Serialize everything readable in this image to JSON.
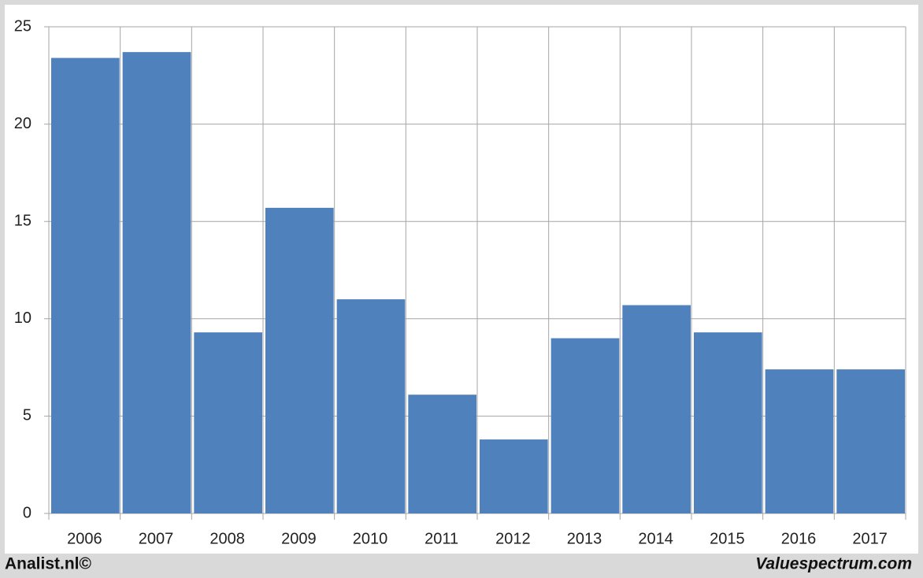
{
  "chart_data": {
    "type": "bar",
    "categories": [
      "2006",
      "2007",
      "2008",
      "2009",
      "2010",
      "2011",
      "2012",
      "2013",
      "2014",
      "2015",
      "2016",
      "2017"
    ],
    "values": [
      23.4,
      23.7,
      9.3,
      15.7,
      11.0,
      6.1,
      3.8,
      9.0,
      10.7,
      9.3,
      7.4,
      7.4
    ],
    "color": "#4f81bd",
    "ylim": [
      0,
      25
    ],
    "yticks": [
      0,
      5,
      10,
      15,
      20,
      25
    ],
    "grid": true
  },
  "footer": {
    "left": "Analist.nl©",
    "right": "Valuespectrum.com"
  }
}
